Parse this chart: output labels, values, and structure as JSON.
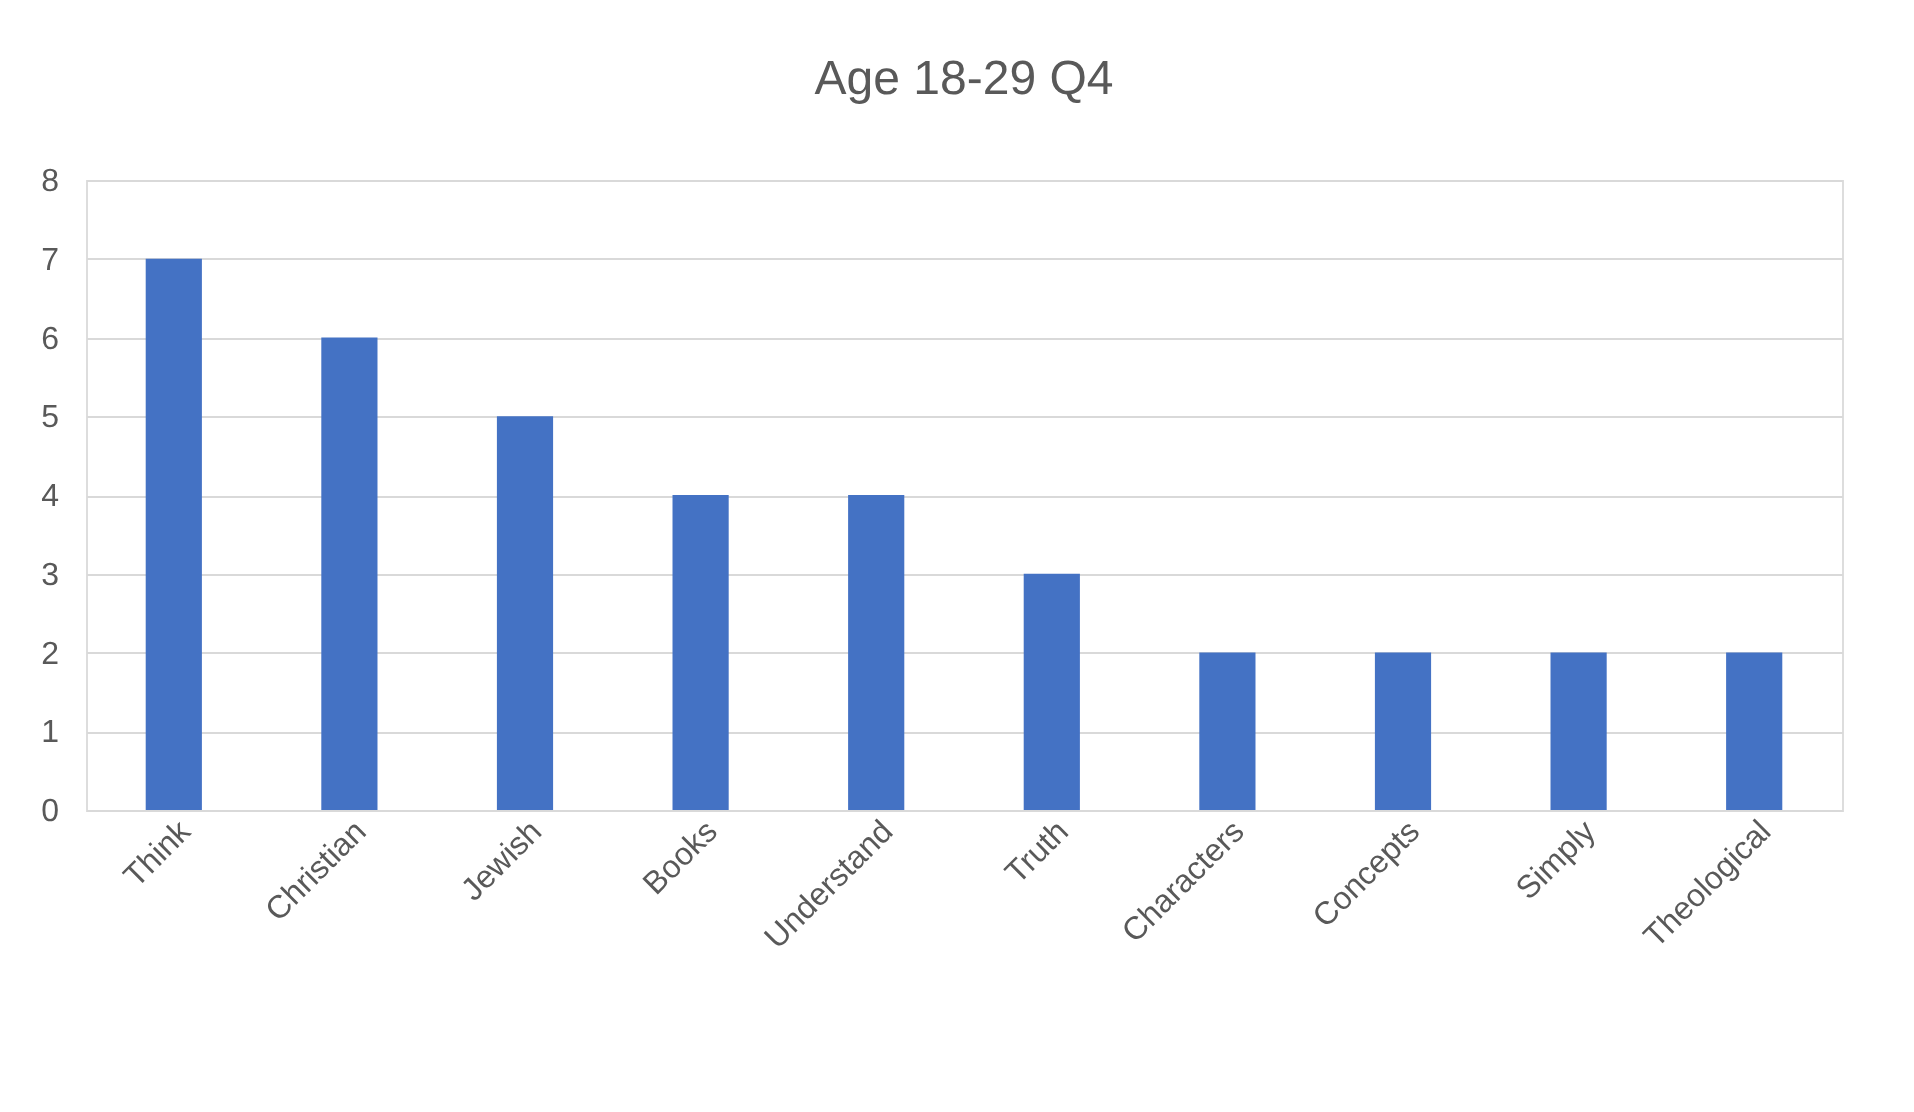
{
  "chart_data": {
    "type": "bar",
    "title": "Age 18-29 Q4",
    "categories": [
      "Think",
      "Christian",
      "Jewish",
      "Books",
      "Understand",
      "Truth",
      "Characters",
      "Concepts",
      "Simply",
      "Theological"
    ],
    "values": [
      7,
      6,
      5,
      4,
      4,
      3,
      2,
      2,
      2,
      2
    ],
    "color": "#4472c4",
    "ylim": [
      0,
      8
    ],
    "yticks": [
      0,
      1,
      2,
      3,
      4,
      5,
      6,
      7,
      8
    ],
    "grid": "y"
  }
}
